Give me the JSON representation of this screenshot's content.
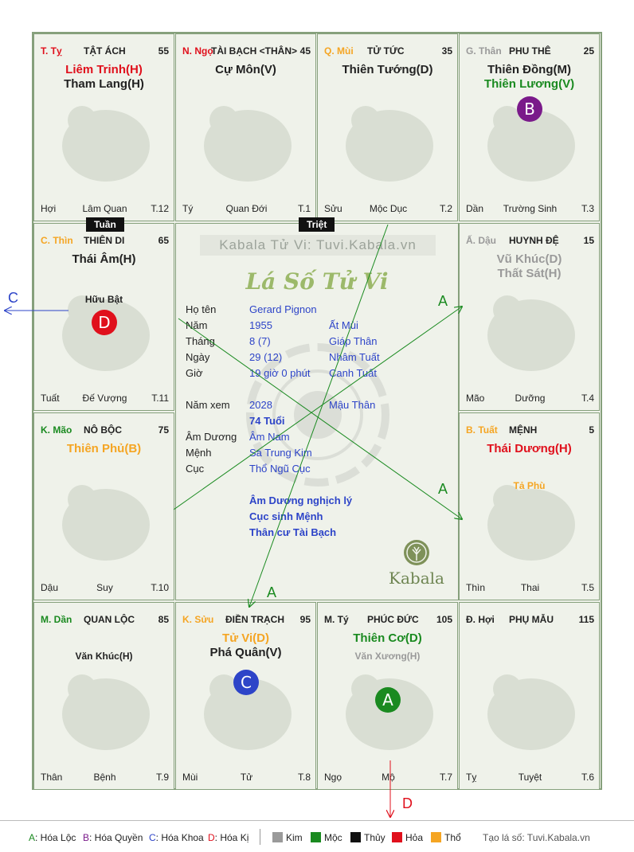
{
  "colors": {
    "red": "#e0101c",
    "green": "#1a8a20",
    "orange": "#f5a523",
    "gray": "#9a9a9a",
    "blue": "#2d44c8",
    "purple": "#7a1a8a"
  },
  "cells": {
    "ty": {
      "chi": "T. Tỵ",
      "chi_color": "#e0101c",
      "palace": "TẬT ÁCH",
      "age": "55",
      "stars": [
        {
          "t": "Liêm Trinh(H)",
          "c": "#e0101c"
        },
        {
          "t": "Tham Lang(H)",
          "c": "#222"
        }
      ],
      "minor": "",
      "b_left": "Hợi",
      "b_mid": "Lâm Quan",
      "b_right": "T.12",
      "animal": "snake-icon"
    },
    "ngo": {
      "chi": "N. Ngọ",
      "chi_color": "#e0101c",
      "palace": "TÀI BẠCH <THÂN>",
      "age": "45",
      "stars": [
        {
          "t": "Cự Môn(V)",
          "c": "#222"
        }
      ],
      "minor": "",
      "b_left": "Tý",
      "b_mid": "Quan Đới",
      "b_right": "T.1",
      "animal": "horse-icon"
    },
    "mui": {
      "chi": "Q. Mùi",
      "chi_color": "#f5a523",
      "palace": "TỬ TỨC",
      "age": "35",
      "stars": [
        {
          "t": "Thiên Tướng(D)",
          "c": "#222"
        }
      ],
      "minor": "",
      "b_left": "Sửu",
      "b_mid": "Mộc Dục",
      "b_right": "T.2",
      "animal": "goat-icon"
    },
    "than": {
      "chi": "G. Thân",
      "chi_color": "#9a9a9a",
      "palace": "PHU THÊ",
      "age": "25",
      "stars": [
        {
          "t": "Thiên Đồng(M)",
          "c": "#222"
        },
        {
          "t": "Thiên Lương(V)",
          "c": "#1a8a20"
        }
      ],
      "minor": "",
      "b_left": "Dần",
      "b_mid": "Trường Sinh",
      "b_right": "T.3",
      "animal": "monkey-icon"
    },
    "thin": {
      "chi": "C. Thìn",
      "chi_color": "#f5a523",
      "palace": "THIÊN DI",
      "age": "65",
      "stars": [
        {
          "t": "Thái Âm(H)",
          "c": "#222"
        }
      ],
      "minor": "Hữu Bật",
      "minor_color": "#222",
      "b_left": "Tuất",
      "b_mid": "Đế Vượng",
      "b_right": "T.11",
      "animal": "dragon-icon"
    },
    "dau": {
      "chi": "Ấ. Dậu",
      "chi_color": "#9a9a9a",
      "palace": "HUYNH ĐỆ",
      "age": "15",
      "stars": [
        {
          "t": "Vũ Khúc(D)",
          "c": "#9a9a9a"
        },
        {
          "t": "Thất Sát(H)",
          "c": "#9a9a9a"
        }
      ],
      "minor": "",
      "b_left": "Mão",
      "b_mid": "Dưỡng",
      "b_right": "T.4",
      "animal": "rooster-icon"
    },
    "mao": {
      "chi": "K. Mão",
      "chi_color": "#1a8a20",
      "palace": "NÔ BỘC",
      "age": "75",
      "stars": [
        {
          "t": "Thiên Phủ(B)",
          "c": "#f5a523"
        }
      ],
      "minor": "",
      "b_left": "Dậu",
      "b_mid": "Suy",
      "b_right": "T.10",
      "animal": "rabbit-icon"
    },
    "tuat": {
      "chi": "B. Tuất",
      "chi_color": "#f5a523",
      "palace": "MỆNH",
      "age": "5",
      "stars": [
        {
          "t": "Thái Dương(H)",
          "c": "#e0101c"
        }
      ],
      "minor": "Tả Phù",
      "minor_color": "#f5a523",
      "b_left": "Thìn",
      "b_mid": "Thai",
      "b_right": "T.5",
      "animal": "dog-icon"
    },
    "dan": {
      "chi": "M. Dần",
      "chi_color": "#1a8a20",
      "palace": "QUAN LỘC",
      "age": "85",
      "stars": [],
      "minor": "Văn Khúc(H)",
      "minor_color": "#222",
      "b_left": "Thân",
      "b_mid": "Bệnh",
      "b_right": "T.9",
      "animal": "tiger-icon"
    },
    "suu": {
      "chi": "K. Sửu",
      "chi_color": "#f5a523",
      "palace": "ĐIỀN TRẠCH",
      "age": "95",
      "stars": [
        {
          "t": "Tử Vi(D)",
          "c": "#f5a523"
        },
        {
          "t": "Phá Quân(V)",
          "c": "#222"
        }
      ],
      "minor": "",
      "b_left": "Mùi",
      "b_mid": "Tử",
      "b_right": "T.8",
      "animal": "ox-icon"
    },
    "tyrat": {
      "chi": "M. Tý",
      "chi_color": "#222",
      "palace": "PHÚC ĐỨC",
      "age": "105",
      "stars": [
        {
          "t": "Thiên Cơ(D)",
          "c": "#1a8a20"
        }
      ],
      "minor": "Văn Xương(H)",
      "minor_color": "#9a9a9a",
      "b_left": "Ngọ",
      "b_mid": "Mộ",
      "b_right": "T.7",
      "animal": "rat-icon"
    },
    "hoi": {
      "chi": "Đ. Hợi",
      "chi_color": "#222",
      "palace": "PHỤ MẪU",
      "age": "115",
      "stars": [],
      "minor": "",
      "b_left": "Tỵ",
      "b_mid": "Tuyệt",
      "b_right": "T.6",
      "animal": "pig-icon"
    }
  },
  "badges": {
    "B": "B",
    "D": "D",
    "C": "C",
    "A": "A"
  },
  "tags": {
    "tuan": "Tuần",
    "triet": "Triệt"
  },
  "center": {
    "watermark": "Kabala Tử Vi: Tuvi.Kabala.vn",
    "title": "Lá Số Tử Vi",
    "rows": [
      {
        "label": "Họ tên",
        "v1": "Gerard Pignon",
        "v2": ""
      },
      {
        "label": "Năm",
        "v1": "1955",
        "v2": "Ất Mùi"
      },
      {
        "label": "Tháng",
        "v1": "8  (7)",
        "v2": "Giáp Thân"
      },
      {
        "label": "Ngày",
        "v1": "29  (12)",
        "v2": "Nhâm Tuất"
      },
      {
        "label": "Giờ",
        "v1": "19 giờ 0 phút",
        "v2": "Canh Tuất"
      },
      {
        "label": "Năm xem",
        "v1": "2028",
        "v2": "Mậu Thân"
      },
      {
        "label": "",
        "v1": "74 Tuổi",
        "v2": ""
      },
      {
        "label": "Âm Dương",
        "v1": "Âm Nam",
        "v2": ""
      },
      {
        "label": "Mệnh",
        "v1": "Sa Trung Kim",
        "v2": ""
      },
      {
        "label": "Cục",
        "v1": "Thổ Ngũ Cục",
        "v2": ""
      }
    ],
    "notes": [
      "Âm Dương nghịch lý",
      "Cục sinh Mệnh",
      "Thân cư Tài Bạch"
    ],
    "brand": "Kabala"
  },
  "arrows": {
    "A": "A",
    "C": "C",
    "D": "D"
  },
  "legend": {
    "hoa_loc_key": "A",
    "hoa_loc": ": Hóa Lộc",
    "hoa_quyen_key": "B",
    "hoa_quyen": ": Hóa Quyền",
    "hoa_khoa_key": "C",
    "hoa_khoa": ": Hóa Khoa",
    "hoa_ki_key": "D",
    "hoa_ki": ": Hóa Kị",
    "kim": "Kim",
    "moc": "Mộc",
    "thuy": "Thủy",
    "hoa": "Hỏa",
    "tho": "Thổ",
    "site": "Tạo lá số: Tuvi.Kabala.vn"
  }
}
